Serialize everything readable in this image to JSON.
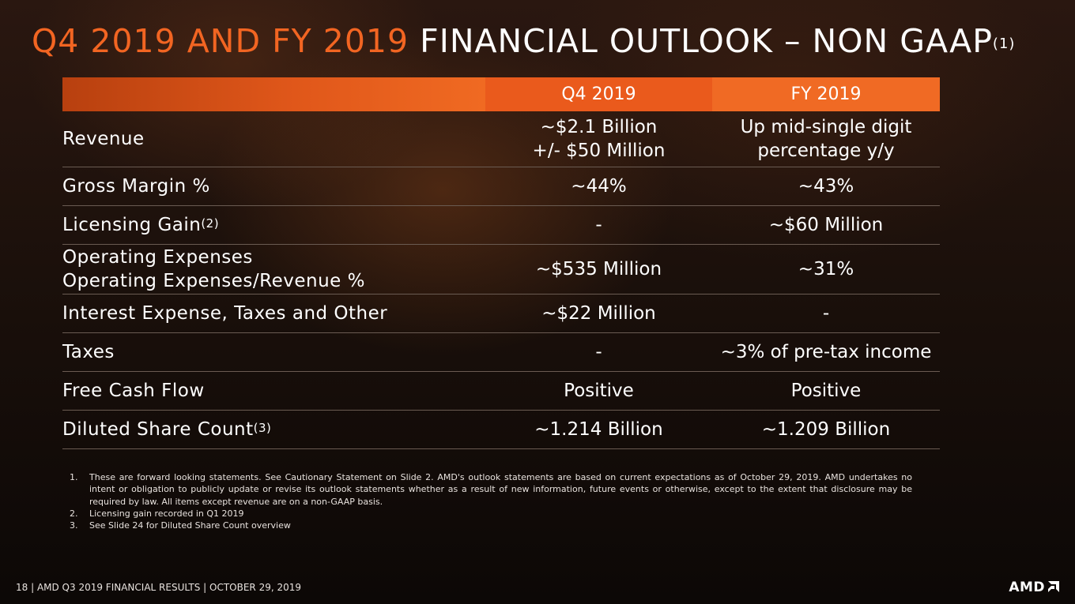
{
  "title": {
    "accent": "Q4 2019 AND FY 2019",
    "main": "FINANCIAL OUTLOOK – NON GAAP",
    "sup": "(1)"
  },
  "table": {
    "headers": [
      "Q4 2019",
      "FY 2019"
    ],
    "rows": [
      {
        "label": "Revenue",
        "sup": "",
        "label2": "",
        "q4_line1": "~$2.1 Billion",
        "q4_line2": "+/- $50 Million",
        "fy_line1": "Up mid-single digit",
        "fy_line2": "percentage y/y"
      },
      {
        "label": "Gross Margin %",
        "sup": "",
        "label2": "",
        "q4_line1": "~44%",
        "q4_line2": "",
        "fy_line1": "~43%",
        "fy_line2": ""
      },
      {
        "label": "Licensing Gain",
        "sup": "(2)",
        "label2": "",
        "q4_line1": "-",
        "q4_line2": "",
        "fy_line1": "~$60 Million",
        "fy_line2": ""
      },
      {
        "label": "Operating Expenses",
        "sup": "",
        "label2": "Operating Expenses/Revenue %",
        "q4_line1": "~$535 Million",
        "q4_line2": "",
        "fy_line1": "~31%",
        "fy_line2": ""
      },
      {
        "label": "Interest Expense, Taxes and Other",
        "sup": "",
        "label2": "",
        "q4_line1": "~$22 Million",
        "q4_line2": "",
        "fy_line1": "-",
        "fy_line2": ""
      },
      {
        "label": "Taxes",
        "sup": "",
        "label2": "",
        "q4_line1": "-",
        "q4_line2": "",
        "fy_line1": "~3% of pre-tax income",
        "fy_line2": ""
      },
      {
        "label": "Free Cash Flow",
        "sup": "",
        "label2": "",
        "q4_line1": "Positive",
        "q4_line2": "",
        "fy_line1": "Positive",
        "fy_line2": ""
      },
      {
        "label": "Diluted Share Count",
        "sup": "(3)",
        "label2": "",
        "q4_line1": "~1.214 Billion",
        "q4_line2": "",
        "fy_line1": "~1.209 Billion",
        "fy_line2": ""
      }
    ]
  },
  "footnotes": [
    {
      "num": "1.",
      "text": "These are forward looking statements.  See Cautionary Statement on Slide 2. AMD's outlook statements are based on current expectations as of October 29, 2019.  AMD undertakes no intent or obligation to publicly update or revise its outlook statements whether as a result of new information, future events or otherwise, except to the extent that disclosure may be required by law.   All items except revenue are on a non-GAAP basis."
    },
    {
      "num": "2.",
      "text": "Licensing gain recorded in Q1 2019"
    },
    {
      "num": "3.",
      "text": "See Slide 24 for Diluted Share Count overview"
    }
  ],
  "footer": {
    "text": "18  | AMD Q3 2019 FINANCIAL RESULTS | OCTOBER 29, 2019"
  },
  "logo": {
    "text": "AMD",
    "icon": "amd-arrow-icon"
  },
  "colors": {
    "accent": "#f26522",
    "header_q4": "#ea5a1c",
    "header_fy": "#f06a24"
  }
}
